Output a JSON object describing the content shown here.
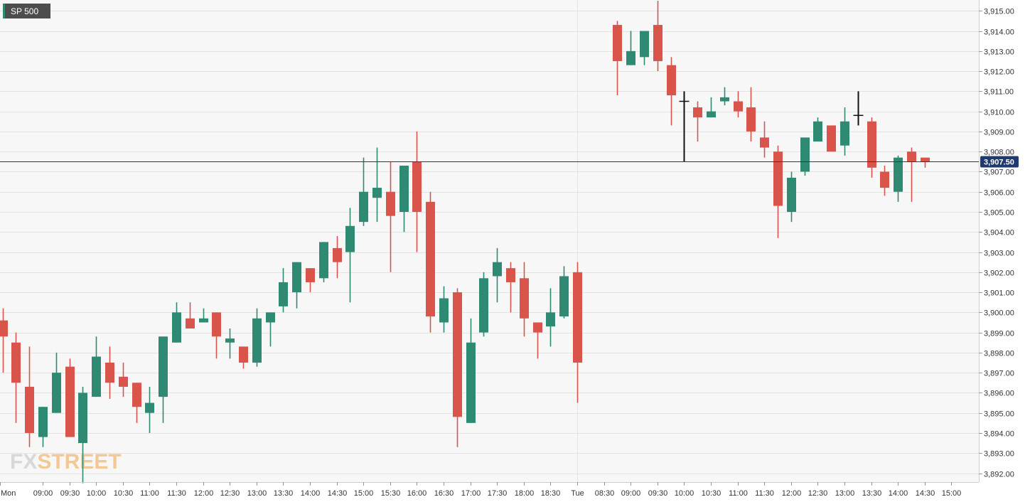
{
  "ticker": "SP 500",
  "logo": {
    "part1": "FX",
    "part2": "STREET"
  },
  "colors": {
    "up": "#2e8a72",
    "down": "#d9544a",
    "doji": "#111111",
    "grid": "#e3e3e3",
    "plot_bg": "#f7f7f7",
    "price_line": "#1f3a6e",
    "ticker_bg": "#4d4d4d",
    "logo_fx": "#d8d8d8",
    "logo_street": "#f2c894"
  },
  "chart_data": {
    "type": "candlestick",
    "title": "SP 500",
    "interval_minutes": 15,
    "current_price": 3907.5,
    "current_price_label": "3,907.50",
    "ylim": [
      3891.5,
      3915.5
    ],
    "y_ticks": [
      3892,
      3893,
      3894,
      3895,
      3896,
      3897,
      3898,
      3899,
      3900,
      3901,
      3902,
      3903,
      3904,
      3905,
      3906,
      3907,
      3908,
      3909,
      3910,
      3911,
      3912,
      3913,
      3914,
      3915
    ],
    "y_tick_labels": [
      "3,892.00",
      "3,893.00",
      "3,894.00",
      "3,895.00",
      "3,896.00",
      "3,897.00",
      "3,898.00",
      "3,899.00",
      "3,900.00",
      "3,901.00",
      "3,902.00",
      "3,903.00",
      "3,904.00",
      "3,905.00",
      "3,906.00",
      "3,907.00",
      "3,908.00",
      "3,909.00",
      "3,910.00",
      "3,911.00",
      "3,912.00",
      "3,913.00",
      "3,914.00",
      "3,915.00"
    ],
    "x_ticks": [
      {
        "label": "Mon",
        "slot": -5
      },
      {
        "label": "09:00",
        "slot": 3
      },
      {
        "label": "09:30",
        "slot": 5
      },
      {
        "label": "10:00",
        "slot": 7
      },
      {
        "label": "10:30",
        "slot": 9
      },
      {
        "label": "11:00",
        "slot": 11
      },
      {
        "label": "11:30",
        "slot": 13
      },
      {
        "label": "12:00",
        "slot": 15
      },
      {
        "label": "12:30",
        "slot": 17
      },
      {
        "label": "13:00",
        "slot": 19
      },
      {
        "label": "13:30",
        "slot": 21
      },
      {
        "label": "14:00",
        "slot": 23
      },
      {
        "label": "14:30",
        "slot": 25
      },
      {
        "label": "15:00",
        "slot": 27
      },
      {
        "label": "15:30",
        "slot": 29
      },
      {
        "label": "16:00",
        "slot": 31
      },
      {
        "label": "16:30",
        "slot": 33
      },
      {
        "label": "17:00",
        "slot": 35
      },
      {
        "label": "17:30",
        "slot": 37
      },
      {
        "label": "18:00",
        "slot": 39
      },
      {
        "label": "18:30",
        "slot": 41
      },
      {
        "label": "Tue",
        "slot": 43
      },
      {
        "label": "08:30",
        "slot": 45
      },
      {
        "label": "09:00",
        "slot": 47
      },
      {
        "label": "09:30",
        "slot": 49
      },
      {
        "label": "10:00",
        "slot": 51
      },
      {
        "label": "10:30",
        "slot": 53
      },
      {
        "label": "11:00",
        "slot": 55
      },
      {
        "label": "11:30",
        "slot": 57
      },
      {
        "label": "12:00",
        "slot": 59
      },
      {
        "label": "12:30",
        "slot": 61
      },
      {
        "label": "13:00",
        "slot": 63
      },
      {
        "label": "13:30",
        "slot": 65
      },
      {
        "label": "14:00",
        "slot": 67
      },
      {
        "label": "14:30",
        "slot": 69
      },
      {
        "label": "15:00",
        "slot": 71
      }
    ],
    "candles": [
      {
        "o": 3899.6,
        "h": 3900.2,
        "l": 3897.0,
        "c": 3898.8
      },
      {
        "o": 3898.5,
        "h": 3899.0,
        "l": 3894.5,
        "c": 3896.5
      },
      {
        "o": 3896.3,
        "h": 3898.3,
        "l": 3893.3,
        "c": 3894.0
      },
      {
        "o": 3893.8,
        "h": 3895.3,
        "l": 3893.3,
        "c": 3895.3
      },
      {
        "o": 3895.0,
        "h": 3898.0,
        "l": 3895.0,
        "c": 3897.0
      },
      {
        "o": 3897.3,
        "h": 3897.7,
        "l": 3893.8,
        "c": 3893.8
      },
      {
        "o": 3893.5,
        "h": 3896.3,
        "l": 3891.5,
        "c": 3896.0
      },
      {
        "o": 3895.8,
        "h": 3898.8,
        "l": 3895.8,
        "c": 3897.8
      },
      {
        "o": 3897.5,
        "h": 3898.3,
        "l": 3895.7,
        "c": 3896.5
      },
      {
        "o": 3896.8,
        "h": 3897.5,
        "l": 3895.8,
        "c": 3896.3
      },
      {
        "o": 3896.5,
        "h": 3896.5,
        "l": 3894.5,
        "c": 3895.3
      },
      {
        "o": 3895.0,
        "h": 3896.3,
        "l": 3894.0,
        "c": 3895.5
      },
      {
        "o": 3895.8,
        "h": 3898.8,
        "l": 3894.5,
        "c": 3898.8
      },
      {
        "o": 3898.5,
        "h": 3900.5,
        "l": 3898.5,
        "c": 3900.0
      },
      {
        "o": 3899.7,
        "h": 3900.5,
        "l": 3899.2,
        "c": 3899.2
      },
      {
        "o": 3899.5,
        "h": 3900.2,
        "l": 3899.5,
        "c": 3899.7
      },
      {
        "o": 3900.0,
        "h": 3900.0,
        "l": 3897.7,
        "c": 3898.8
      },
      {
        "o": 3898.5,
        "h": 3899.2,
        "l": 3897.7,
        "c": 3898.7
      },
      {
        "o": 3898.3,
        "h": 3898.3,
        "l": 3897.2,
        "c": 3897.5
      },
      {
        "o": 3897.5,
        "h": 3900.2,
        "l": 3897.3,
        "c": 3899.7
      },
      {
        "o": 3899.5,
        "h": 3900.0,
        "l": 3898.3,
        "c": 3900.0
      },
      {
        "o": 3900.3,
        "h": 3902.2,
        "l": 3900.0,
        "c": 3901.5
      },
      {
        "o": 3901.0,
        "h": 3902.5,
        "l": 3900.2,
        "c": 3902.5
      },
      {
        "o": 3902.2,
        "h": 3902.2,
        "l": 3901.0,
        "c": 3901.5
      },
      {
        "o": 3901.7,
        "h": 3903.5,
        "l": 3901.5,
        "c": 3903.5
      },
      {
        "o": 3903.2,
        "h": 3903.8,
        "l": 3901.7,
        "c": 3902.5
      },
      {
        "o": 3903.0,
        "h": 3905.2,
        "l": 3900.5,
        "c": 3904.3
      },
      {
        "o": 3904.5,
        "h": 3907.7,
        "l": 3904.3,
        "c": 3906.0
      },
      {
        "o": 3905.7,
        "h": 3908.2,
        "l": 3904.5,
        "c": 3906.2
      },
      {
        "o": 3906.0,
        "h": 3907.5,
        "l": 3902.0,
        "c": 3904.8
      },
      {
        "o": 3905.0,
        "h": 3907.2,
        "l": 3904.0,
        "c": 3907.3
      },
      {
        "o": 3907.5,
        "h": 3909.0,
        "l": 3903.0,
        "c": 3905.0
      },
      {
        "o": 3905.5,
        "h": 3906.0,
        "l": 3899.0,
        "c": 3899.8
      },
      {
        "o": 3899.5,
        "h": 3901.3,
        "l": 3899.0,
        "c": 3900.7
      },
      {
        "o": 3901.0,
        "h": 3901.2,
        "l": 3893.3,
        "c": 3894.8
      },
      {
        "o": 3894.5,
        "h": 3899.7,
        "l": 3894.5,
        "c": 3898.5
      },
      {
        "o": 3899.0,
        "h": 3902.0,
        "l": 3898.8,
        "c": 3901.7
      },
      {
        "o": 3901.8,
        "h": 3903.2,
        "l": 3900.5,
        "c": 3902.5
      },
      {
        "o": 3902.2,
        "h": 3902.5,
        "l": 3900.0,
        "c": 3901.5
      },
      {
        "o": 3901.7,
        "h": 3902.5,
        "l": 3898.8,
        "c": 3899.7
      },
      {
        "o": 3899.5,
        "h": 3899.5,
        "l": 3897.7,
        "c": 3899.0
      },
      {
        "o": 3899.3,
        "h": 3901.2,
        "l": 3898.3,
        "c": 3900.0
      },
      {
        "o": 3899.8,
        "h": 3902.3,
        "l": 3899.7,
        "c": 3901.8
      },
      {
        "o": 3902.0,
        "h": 3902.5,
        "l": 3895.5,
        "c": 3897.5
      },
      null,
      null,
      {
        "o": 3914.3,
        "h": 3914.5,
        "l": 3910.8,
        "c": 3912.5
      },
      {
        "o": 3912.3,
        "h": 3914.0,
        "l": 3912.3,
        "c": 3913.0
      },
      {
        "o": 3912.7,
        "h": 3914.0,
        "l": 3912.3,
        "c": 3914.0
      },
      {
        "o": 3914.3,
        "h": 3915.5,
        "l": 3912.0,
        "c": 3912.5
      },
      {
        "o": 3912.3,
        "h": 3912.7,
        "l": 3909.3,
        "c": 3910.8
      },
      {
        "o": 3910.5,
        "h": 3911.0,
        "l": 3907.5,
        "c": 3910.5
      },
      {
        "o": 3910.2,
        "h": 3910.5,
        "l": 3908.5,
        "c": 3909.7
      },
      {
        "o": 3909.7,
        "h": 3910.7,
        "l": 3909.7,
        "c": 3910.0
      },
      {
        "o": 3910.5,
        "h": 3911.2,
        "l": 3910.3,
        "c": 3910.7
      },
      {
        "o": 3910.5,
        "h": 3911.0,
        "l": 3909.7,
        "c": 3910.0
      },
      {
        "o": 3910.2,
        "h": 3911.2,
        "l": 3908.5,
        "c": 3909.0
      },
      {
        "o": 3908.7,
        "h": 3909.5,
        "l": 3907.7,
        "c": 3908.2
      },
      {
        "o": 3908.0,
        "h": 3908.3,
        "l": 3903.7,
        "c": 3905.3
      },
      {
        "o": 3905.0,
        "h": 3907.0,
        "l": 3904.5,
        "c": 3906.7
      },
      {
        "o": 3907.0,
        "h": 3908.7,
        "l": 3906.8,
        "c": 3908.7
      },
      {
        "o": 3908.5,
        "h": 3909.7,
        "l": 3908.5,
        "c": 3909.5
      },
      {
        "o": 3909.3,
        "h": 3909.3,
        "l": 3908.0,
        "c": 3908.0
      },
      {
        "o": 3908.3,
        "h": 3910.2,
        "l": 3907.8,
        "c": 3909.5
      },
      {
        "o": 3909.8,
        "h": 3911.0,
        "l": 3909.3,
        "c": 3909.8
      },
      {
        "o": 3909.5,
        "h": 3909.7,
        "l": 3906.7,
        "c": 3907.2
      },
      {
        "o": 3907.0,
        "h": 3907.3,
        "l": 3905.8,
        "c": 3906.2
      },
      {
        "o": 3906.0,
        "h": 3907.8,
        "l": 3905.5,
        "c": 3907.7
      },
      {
        "o": 3908.0,
        "h": 3908.2,
        "l": 3905.5,
        "c": 3907.5
      },
      {
        "o": 3907.7,
        "h": 3907.7,
        "l": 3907.2,
        "c": 3907.5
      }
    ]
  }
}
